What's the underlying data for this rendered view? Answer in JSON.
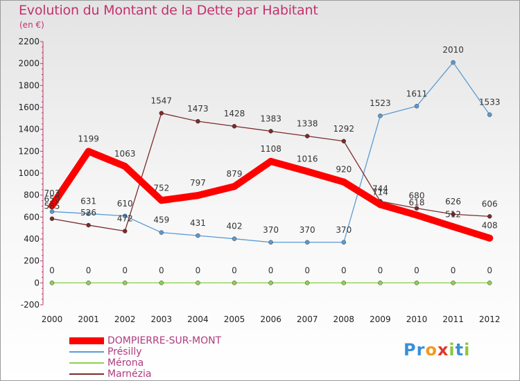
{
  "title": "Evolution du Montant de la Dette par Habitant",
  "unit": "(en €)",
  "logo": {
    "text": "Proxiti",
    "letters": [
      "P",
      "r",
      "o",
      "x",
      "i",
      "t",
      "i"
    ],
    "colors": [
      "#3a8fd8",
      "#3a8fd8",
      "#f39a1e",
      "#e0382c",
      "#8cc63f",
      "#3a8fd8",
      "#8cc63f"
    ]
  },
  "chart_data": {
    "type": "line",
    "x": [
      "2000",
      "2001",
      "2002",
      "2003",
      "2004",
      "2005",
      "2006",
      "2007",
      "2008",
      "2009",
      "2010",
      "2011",
      "2012"
    ],
    "ylim": [
      -200,
      2200
    ],
    "yticks": [
      -200,
      0,
      200,
      400,
      600,
      800,
      1000,
      1200,
      1400,
      1600,
      1800,
      2000,
      2200
    ],
    "grid": false,
    "legend_placement": "bottom-left",
    "series": [
      {
        "name": "DOMPIERRE-SUR-MONT",
        "color": "#ff0000",
        "values": [
          703,
          1199,
          1063,
          752,
          797,
          879,
          1108,
          1016,
          920,
          714,
          618,
          512,
          408
        ],
        "labels": [
          "703",
          "1199",
          "1063",
          "752",
          "797",
          "879",
          "1108",
          "1016",
          "920",
          "714",
          "618",
          "512",
          "408"
        ]
      },
      {
        "name": "Présilly",
        "color": "#5a9bd5",
        "values": [
          650,
          631,
          610,
          459,
          431,
          402,
          370,
          370,
          370,
          1523,
          1611,
          2010,
          1533
        ],
        "labels": [
          "650",
          "631",
          "610",
          "459",
          "431",
          "402",
          "370",
          "370",
          "370",
          "1523",
          "1611",
          "2010",
          "1533"
        ]
      },
      {
        "name": "Mérona",
        "color": "#8fd14f",
        "values": [
          0,
          0,
          0,
          0,
          0,
          0,
          0,
          0,
          0,
          0,
          0,
          0,
          0
        ],
        "labels": [
          "0",
          "0",
          "0",
          "0",
          "0",
          "0",
          "0",
          "0",
          "0",
          "0",
          "0",
          "0",
          "0"
        ]
      },
      {
        "name": "Marnézia",
        "color": "#7b2b2b",
        "values": [
          585,
          526,
          472,
          1547,
          1473,
          1428,
          1383,
          1338,
          1292,
          744,
          680,
          626,
          606
        ],
        "labels": [
          "585",
          "526",
          "472",
          "1547",
          "1473",
          "1428",
          "1383",
          "1338",
          "1292",
          "744",
          "680",
          "626",
          "606"
        ]
      }
    ]
  }
}
